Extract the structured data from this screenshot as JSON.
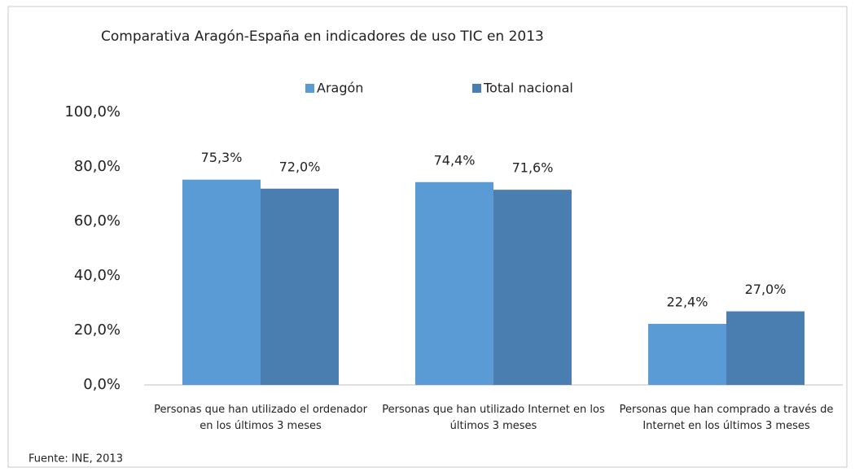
{
  "chart_data": {
    "type": "bar",
    "title": "Comparativa Aragón-España en indicadores de uso TIC en 2013",
    "categories": [
      "Personas que han utilizado el ordenador en los últimos 3 meses",
      "Personas que han utilizado Internet en los últimos 3 meses",
      "Personas que han comprado a través de Internet en los últimos 3 meses"
    ],
    "series": [
      {
        "name": "Aragón",
        "color": "#5b9bd5",
        "values": [
          75.3,
          74.4,
          22.4
        ],
        "value_labels": [
          "75,3%",
          "74,4%",
          "22,4%"
        ]
      },
      {
        "name": "Total nacional",
        "color": "#4a7eb1",
        "values": [
          72.0,
          71.6,
          27.0
        ],
        "value_labels": [
          "72,0%",
          "71,6%",
          "27,0%"
        ]
      }
    ],
    "ylim": [
      0,
      100
    ],
    "yticks": [
      {
        "value": 0,
        "label": "0,0%"
      },
      {
        "value": 20,
        "label": "20,0%"
      },
      {
        "value": 40,
        "label": "40,0%"
      },
      {
        "value": 60,
        "label": "60,0%"
      },
      {
        "value": 80,
        "label": "80,0%"
      },
      {
        "value": 100,
        "label": "100,0%"
      }
    ],
    "grid": false,
    "source": "Fuente: INE, 2013"
  }
}
